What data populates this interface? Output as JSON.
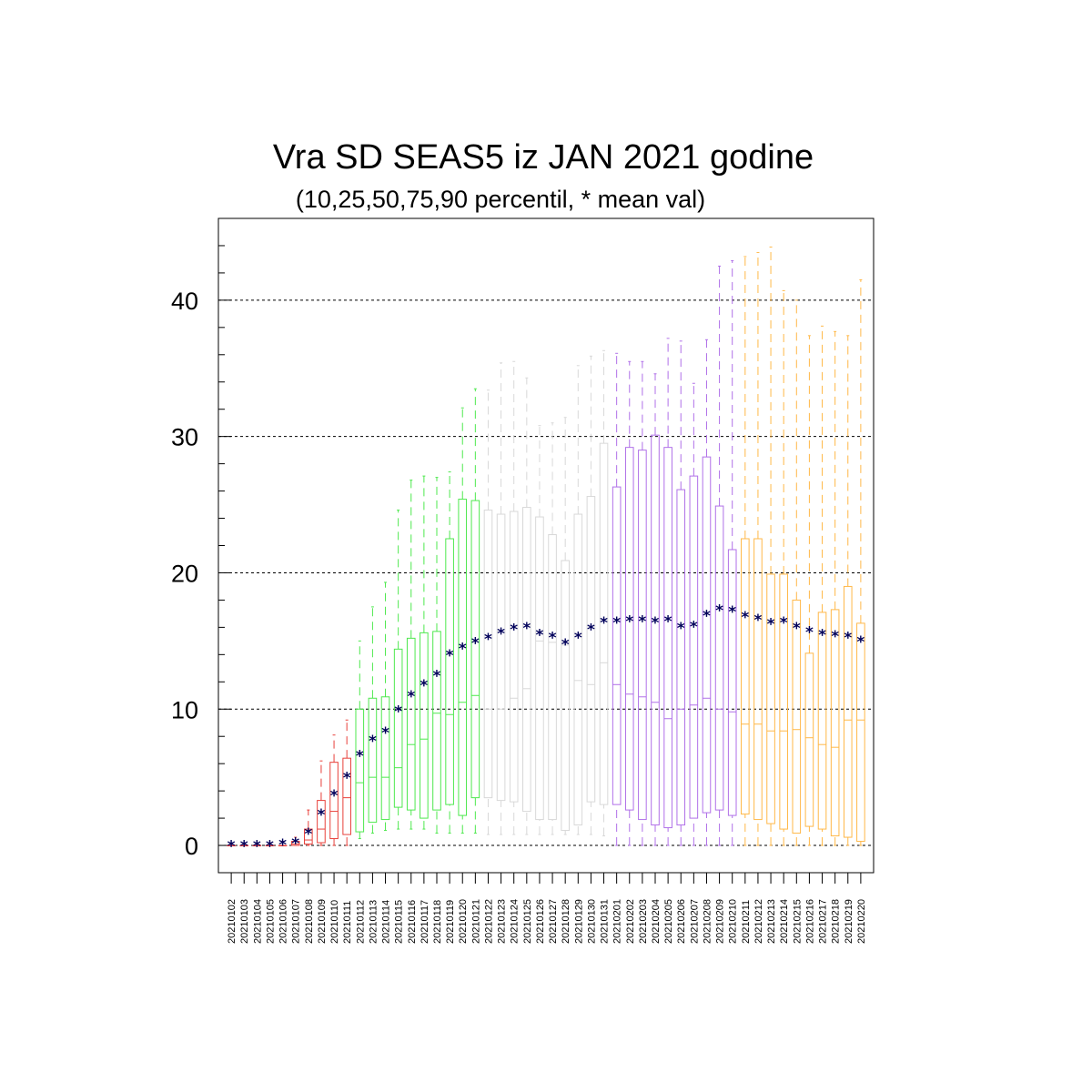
{
  "chart_data": {
    "type": "boxplot",
    "title": "Vra SD SEAS5 iz JAN 2021 godine",
    "subtitle": "(10,25,50,75,90 percentil, * mean val)",
    "mean_marker": "*",
    "ylim": [
      -2,
      46
    ],
    "yticks": [
      0,
      10,
      20,
      30,
      40
    ],
    "ytick_labels": [
      "0",
      "10",
      "20",
      "30",
      "40"
    ],
    "grid": "horizontal dashed at major ticks",
    "colors": {
      "2021-01-02..2021-01-11": "#e8403a",
      "2021-01-12..2021-01-21": "#4ee84e",
      "2021-01-22..2021-01-31": "#d8d8d8",
      "2021-02-01..2021-02-10": "#b070e8",
      "2021-02-11..2021-02-20": "#ffb848",
      "mean": "#00005a"
    },
    "categories": [
      "20210102",
      "20210103",
      "20210104",
      "20210105",
      "20210106",
      "20210107",
      "20210108",
      "20210109",
      "20210110",
      "20210111",
      "20210112",
      "20210113",
      "20210114",
      "20210115",
      "20210116",
      "20210117",
      "20210118",
      "20210119",
      "20210120",
      "20210121",
      "20210122",
      "20210123",
      "20210124",
      "20210125",
      "20210126",
      "20210127",
      "20210128",
      "20210129",
      "20210130",
      "20210131",
      "20210201",
      "20210202",
      "20210203",
      "20210204",
      "20210205",
      "20210206",
      "20210207",
      "20210208",
      "20210209",
      "20210210",
      "20210211",
      "20210212",
      "20210213",
      "20210214",
      "20210215",
      "20210216",
      "20210217",
      "20210218",
      "20210219",
      "20210220"
    ],
    "groups": [
      0,
      0,
      0,
      0,
      0,
      0,
      0,
      0,
      0,
      0,
      1,
      1,
      1,
      1,
      1,
      1,
      1,
      1,
      1,
      1,
      2,
      2,
      2,
      2,
      2,
      2,
      2,
      2,
      2,
      2,
      3,
      3,
      3,
      3,
      3,
      3,
      3,
      3,
      3,
      3,
      4,
      4,
      4,
      4,
      4,
      4,
      4,
      4,
      4,
      4
    ],
    "group_colors": [
      "#e8403a",
      "#4ee84e",
      "#d8d8d8",
      "#b070e8",
      "#ffb848"
    ],
    "p10": [
      0,
      0,
      0,
      0,
      0,
      0,
      0,
      0,
      0,
      0,
      0.5,
      0.9,
      1.1,
      1.2,
      1.2,
      1.2,
      0.9,
      0.9,
      0.9,
      0.9,
      0.8,
      0.8,
      0.8,
      0.8,
      0.8,
      0.8,
      0.8,
      0.8,
      0.8,
      0.7,
      0,
      0,
      0,
      0,
      0,
      0,
      0,
      0,
      0,
      0,
      0,
      0,
      0,
      0,
      0,
      0,
      0,
      0,
      0,
      0
    ],
    "p25": [
      0,
      0,
      0,
      0,
      0,
      0,
      0.1,
      0.2,
      0.5,
      0.8,
      1.0,
      1.7,
      1.9,
      2.8,
      2.6,
      2.0,
      2.6,
      3.0,
      2.2,
      3.5,
      3.5,
      3.3,
      3.2,
      2.5,
      1.9,
      1.9,
      1.1,
      1.5,
      3.2,
      3.0,
      3.0,
      2.6,
      1.9,
      1.5,
      1.3,
      1.5,
      2.0,
      2.4,
      2.6,
      2.2,
      2.3,
      1.9,
      1.6,
      1.2,
      0.9,
      1.4,
      1.2,
      0.7,
      0.6,
      0.3
    ],
    "p50": [
      0,
      0,
      0,
      0,
      0,
      0.1,
      0.4,
      1.2,
      2.5,
      3.5,
      4.6,
      5.0,
      5.0,
      5.7,
      7.4,
      7.8,
      9.7,
      9.6,
      10.5,
      11.0,
      10.0,
      10.0,
      10.8,
      11.5,
      15.0,
      14.9,
      14.7,
      12.1,
      11.8,
      13.4,
      11.8,
      11.1,
      10.9,
      10.5,
      9.3,
      10.0,
      10.3,
      10.8,
      10.0,
      9.8,
      8.9,
      8.9,
      8.4,
      8.4,
      8.5,
      7.9,
      7.4,
      7.2,
      9.2,
      9.2
    ],
    "p75": [
      0,
      0,
      0,
      0,
      0,
      0.3,
      1.2,
      3.3,
      6.1,
      6.4,
      10.0,
      10.8,
      10.9,
      14.4,
      15.2,
      15.6,
      15.7,
      22.5,
      25.4,
      25.3,
      24.6,
      24.3,
      24.5,
      24.8,
      24.1,
      22.8,
      20.9,
      24.3,
      25.6,
      29.5,
      26.3,
      29.2,
      29.0,
      30.1,
      29.2,
      26.1,
      27.1,
      28.5,
      24.9,
      21.7,
      22.5,
      22.5,
      19.9,
      19.9,
      18.0,
      14.1,
      17.1,
      17.3,
      19.0,
      16.3
    ],
    "p90": [
      0.1,
      0.1,
      0.1,
      0.1,
      0.3,
      0.6,
      2.6,
      6.2,
      8.1,
      9.2,
      15.0,
      17.5,
      19.3,
      24.6,
      26.8,
      27.1,
      27.0,
      27.4,
      32.1,
      33.5,
      33.4,
      35.4,
      35.5,
      34.3,
      30.8,
      31.0,
      31.4,
      35.2,
      35.9,
      36.3,
      36.1,
      35.5,
      35.5,
      34.6,
      37.2,
      37.0,
      33.9,
      37.1,
      42.5,
      42.9,
      43.2,
      43.5,
      43.9,
      40.7,
      40.0,
      37.4,
      38.1,
      37.7,
      37.4,
      41.5
    ],
    "mean": [
      0.1,
      0.1,
      0.1,
      0.1,
      0.2,
      0.3,
      1.0,
      2.4,
      3.8,
      5.1,
      6.7,
      7.8,
      8.4,
      10.0,
      11.1,
      11.9,
      12.6,
      14.1,
      14.6,
      15.0,
      15.3,
      15.7,
      16.0,
      16.1,
      15.6,
      15.4,
      14.9,
      15.4,
      16.0,
      16.5,
      16.5,
      16.6,
      16.6,
      16.5,
      16.6,
      16.1,
      16.2,
      17.0,
      17.4,
      17.3,
      16.9,
      16.7,
      16.4,
      16.5,
      16.1,
      15.8,
      15.6,
      15.5,
      15.4,
      15.1
    ]
  }
}
